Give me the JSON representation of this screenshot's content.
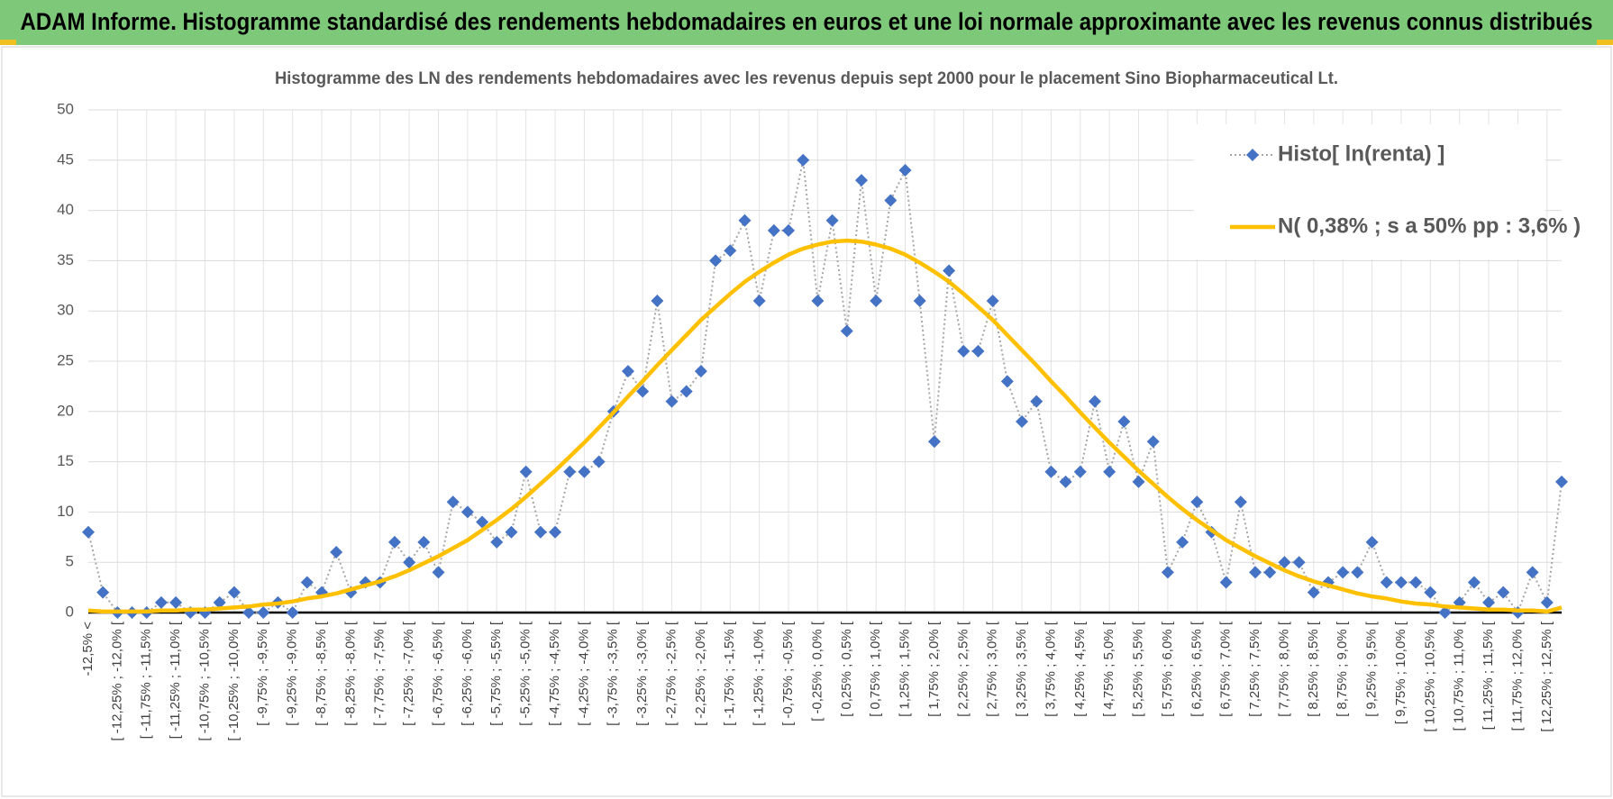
{
  "header": {
    "title": "ADAM Informe. Histogramme standardisé des rendements hebdomadaires en euros et une loi normale approximante avec les revenus connus distribués"
  },
  "chart_data": {
    "type": "line",
    "title": "Histogramme des LN des rendements hebdomadaires avec les revenus depuis sept 2000 pour le placement Sino Biopharmaceutical Lt.",
    "categories": [
      "-12,5% <",
      null,
      "[ -12,25% ; -12,0% [",
      null,
      "[ -11,75% ; -11,5% [",
      null,
      "[ -11,25% ; -11,0% [",
      null,
      "[ -10,75% ; -10,5% [",
      null,
      "[ -10,25% ; -10,0% [",
      null,
      "[ -9,75% ; -9,5% [",
      null,
      "[ -9,25% ; -9,0% [",
      null,
      "[ -8,75% ; -8,5% [",
      null,
      "[ -8,25% ; -8,0% [",
      null,
      "[ -7,75% ; -7,5% [",
      null,
      "[ -7,25% ; -7,0% [",
      null,
      "[ -6,75% ; -6,5% [",
      null,
      "[ -6,25% ; -6,0% [",
      null,
      "[ -5,75% ; -5,5% [",
      null,
      "[ -5,25% ; -5,0% [",
      null,
      "[ -4,75% ; -4,5% [",
      null,
      "[ -4,25% ; -4,0% [",
      null,
      "[ -3,75% ; -3,5% [",
      null,
      "[ -3,25% ; -3,0% [",
      null,
      "[ -2,75% ; -2,5% [",
      null,
      "[ -2,25% ; -2,0% [",
      null,
      "[ -1,75% ; -1,5% [",
      null,
      "[ -1,25% ; -1,0% [",
      null,
      "[ -0,75% ; -0,5% [",
      null,
      "[ -0,25% ; 0,0% [",
      null,
      "[ 0,25% ; 0,5% [",
      null,
      "[ 0,75% ; 1,0% [",
      null,
      "[ 1,25% ; 1,5% [",
      null,
      "[ 1,75% ; 2,0% [",
      null,
      "[ 2,25% ; 2,5% [",
      null,
      "[ 2,75% ; 3,0% [",
      null,
      "[ 3,25% ; 3,5% [",
      null,
      "[ 3,75% ; 4,0% [",
      null,
      "[ 4,25% ; 4,5% [",
      null,
      "[ 4,75% ; 5,0% [",
      null,
      "[ 5,25% ; 5,5% [",
      null,
      "[ 5,75% ; 6,0% [",
      null,
      "[ 6,25% ; 6,5% [",
      null,
      "[ 6,75% ; 7,0% [",
      null,
      "[ 7,25% ; 7,5% [",
      null,
      "[ 7,75% ; 8,0% [",
      null,
      "[ 8,25% ; 8,5% [",
      null,
      "[ 8,75% ; 9,0% [",
      null,
      "[ 9,25% ; 9,5% [",
      null,
      "[ 9,75% ; 10,0% [",
      null,
      "[ 10,25% ; 10,5% [",
      null,
      "[ 10,75% ; 11,0% [",
      null,
      "[ 11,25% ; 11,5% [",
      null,
      "[ 11,75% ; 12,0% [",
      null,
      "[ 12,25% ; 12,5% [",
      null
    ],
    "series": [
      {
        "name": "Histo[ ln(renta) ]",
        "color": "#4472c4",
        "line_color": "#a6a6a6",
        "line_style": "dotted",
        "marker": "diamond",
        "values": [
          8,
          2,
          0,
          0,
          0,
          1,
          1,
          0,
          0,
          1,
          2,
          0,
          0,
          1,
          0,
          3,
          2,
          6,
          2,
          3,
          3,
          7,
          5,
          7,
          4,
          11,
          10,
          9,
          7,
          8,
          14,
          8,
          8,
          14,
          14,
          15,
          20,
          24,
          22,
          31,
          21,
          22,
          24,
          35,
          36,
          39,
          31,
          38,
          38,
          45,
          31,
          39,
          28,
          43,
          31,
          41,
          44,
          31,
          17,
          34,
          26,
          26,
          31,
          23,
          19,
          21,
          14,
          13,
          14,
          21,
          14,
          19,
          13,
          17,
          4,
          7,
          11,
          8,
          3,
          11,
          4,
          4,
          5,
          5,
          2,
          3,
          4,
          4,
          7,
          3,
          3,
          3,
          2,
          0,
          1,
          3,
          1,
          2,
          0,
          4,
          1,
          13
        ]
      },
      {
        "name": "N( 0,38% ; s a 50% pp : 3,6% )",
        "color": "#ffc000",
        "line_style": "solid",
        "marker": null,
        "values": [
          0.2,
          0.1,
          0.1,
          0.1,
          0.1,
          0.2,
          0.2,
          0.3,
          0.3,
          0.4,
          0.5,
          0.6,
          0.8,
          0.9,
          1.1,
          1.4,
          1.6,
          1.9,
          2.3,
          2.7,
          3.1,
          3.6,
          4.2,
          4.9,
          5.6,
          6.4,
          7.2,
          8.2,
          9.2,
          10.3,
          11.5,
          12.8,
          14.1,
          15.5,
          16.9,
          18.4,
          19.9,
          21.5,
          23.0,
          24.6,
          26.1,
          27.6,
          29.1,
          30.4,
          31.7,
          32.9,
          33.9,
          34.8,
          35.6,
          36.2,
          36.6,
          36.9,
          37.0,
          36.9,
          36.6,
          36.2,
          35.6,
          34.8,
          33.9,
          32.9,
          31.7,
          30.4,
          29.1,
          27.6,
          26.1,
          24.6,
          23.0,
          21.5,
          19.9,
          18.4,
          16.9,
          15.5,
          14.1,
          12.8,
          11.5,
          10.3,
          9.2,
          8.2,
          7.2,
          6.4,
          5.6,
          4.9,
          4.2,
          3.6,
          3.1,
          2.7,
          2.3,
          1.9,
          1.6,
          1.4,
          1.1,
          0.9,
          0.8,
          0.6,
          0.5,
          0.4,
          0.3,
          0.3,
          0.2,
          0.2,
          0.1,
          0.5
        ]
      }
    ],
    "ylim": [
      0,
      50
    ],
    "yticks": [
      0,
      5,
      10,
      15,
      20,
      25,
      30,
      35,
      40,
      45,
      50
    ],
    "grid": true,
    "legend": "upper right"
  }
}
